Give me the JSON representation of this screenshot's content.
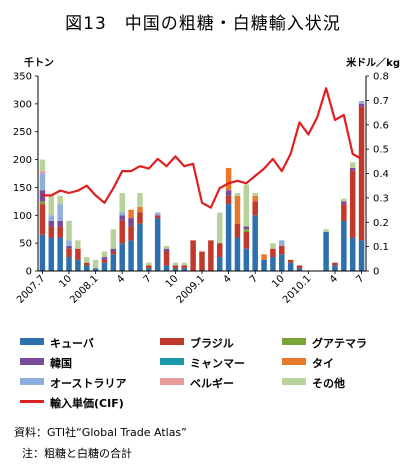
{
  "title": "図13　中国の粗糖・白糖輸入状況",
  "source": "資料：GTI社“Global Trade Atlas”",
  "note": "注：粗糖と白糖の合計",
  "chart_data": {
    "type": "bar",
    "stacked": true,
    "title": "図13　中国の粗糖・白糖輸入状況",
    "left_axis": {
      "label": "千トン",
      "ticks": [
        0,
        50,
        100,
        150,
        200,
        250,
        300,
        350
      ],
      "range": [
        0,
        350
      ]
    },
    "right_axis": {
      "label": "米ドル／kg",
      "ticks": [
        "0",
        "0.1",
        "0.2",
        "0.3",
        "0.4",
        "0.5",
        "0.6",
        "0.7",
        "0.8"
      ],
      "range": [
        0,
        0.8
      ]
    },
    "x_tick_labels": [
      {
        "label": "2007.7",
        "index": 0
      },
      {
        "label": "10",
        "index": 3
      },
      {
        "label": "2008.1",
        "index": 6
      },
      {
        "label": "4",
        "index": 9
      },
      {
        "label": "7",
        "index": 12
      },
      {
        "label": "10",
        "index": 15
      },
      {
        "label": "2009.1",
        "index": 18
      },
      {
        "label": "4",
        "index": 21
      },
      {
        "label": "7",
        "index": 24
      },
      {
        "label": "10",
        "index": 27
      },
      {
        "label": "2010.1",
        "index": 30
      },
      {
        "label": "4",
        "index": 33
      },
      {
        "label": "7",
        "index": 36
      }
    ],
    "months": 37,
    "series": [
      {
        "name": "キューバ",
        "color": "#2e6fae",
        "values": [
          65,
          60,
          60,
          25,
          20,
          10,
          5,
          15,
          30,
          50,
          55,
          85,
          5,
          95,
          10,
          5,
          5,
          0,
          0,
          0,
          25,
          120,
          60,
          40,
          100,
          20,
          25,
          30,
          15,
          5,
          0,
          0,
          70,
          10,
          90,
          60,
          55
        ]
      },
      {
        "name": "ブラジル",
        "color": "#c0392b",
        "values": [
          55,
          20,
          20,
          15,
          20,
          5,
          0,
          5,
          5,
          40,
          25,
          20,
          5,
          5,
          25,
          5,
          5,
          55,
          35,
          55,
          25,
          15,
          25,
          30,
          25,
          0,
          15,
          15,
          5,
          5,
          0,
          0,
          0,
          5,
          30,
          120,
          240
        ]
      },
      {
        "name": "グアテマラ",
        "color": "#7aa33a",
        "values": [
          5,
          0,
          0,
          0,
          0,
          0,
          0,
          0,
          0,
          0,
          0,
          0,
          0,
          0,
          0,
          0,
          0,
          0,
          0,
          0,
          0,
          0,
          0,
          5,
          0,
          0,
          0,
          0,
          0,
          0,
          0,
          0,
          0,
          0,
          0,
          0,
          0
        ]
      },
      {
        "name": "韓国",
        "color": "#7a4a9a",
        "values": [
          20,
          10,
          10,
          5,
          0,
          0,
          0,
          5,
          5,
          10,
          15,
          0,
          0,
          0,
          5,
          0,
          0,
          0,
          0,
          0,
          0,
          10,
          0,
          5,
          0,
          0,
          0,
          0,
          0,
          0,
          0,
          0,
          0,
          0,
          5,
          5,
          5
        ]
      },
      {
        "name": "ミャンマー",
        "color": "#1a9aa8",
        "values": [
          0,
          0,
          0,
          0,
          0,
          0,
          0,
          0,
          0,
          0,
          0,
          0,
          0,
          0,
          0,
          0,
          0,
          0,
          0,
          0,
          0,
          0,
          0,
          0,
          0,
          0,
          0,
          0,
          0,
          0,
          0,
          0,
          0,
          0,
          0,
          0,
          0
        ]
      },
      {
        "name": "タイ",
        "color": "#e8792a",
        "values": [
          0,
          0,
          0,
          0,
          0,
          0,
          0,
          0,
          0,
          0,
          15,
          10,
          0,
          0,
          0,
          0,
          0,
          0,
          0,
          0,
          0,
          40,
          50,
          0,
          10,
          10,
          0,
          0,
          0,
          0,
          0,
          0,
          0,
          0,
          0,
          0,
          0
        ]
      },
      {
        "name": "オーストラリア",
        "color": "#8faedc",
        "values": [
          30,
          10,
          30,
          10,
          0,
          0,
          0,
          0,
          0,
          5,
          0,
          0,
          0,
          5,
          0,
          0,
          0,
          0,
          0,
          0,
          0,
          0,
          0,
          0,
          0,
          0,
          0,
          10,
          0,
          0,
          0,
          0,
          0,
          0,
          0,
          0,
          5
        ]
      },
      {
        "name": "ベルギー",
        "color": "#e89a9a",
        "values": [
          5,
          0,
          0,
          0,
          0,
          0,
          0,
          0,
          0,
          0,
          0,
          0,
          0,
          0,
          0,
          0,
          0,
          0,
          0,
          0,
          0,
          0,
          0,
          0,
          0,
          0,
          0,
          0,
          0,
          0,
          0,
          0,
          0,
          0,
          0,
          0,
          0
        ]
      },
      {
        "name": "その他",
        "color": "#b5d39a",
        "values": [
          20,
          35,
          15,
          35,
          15,
          10,
          15,
          10,
          35,
          35,
          0,
          25,
          5,
          0,
          5,
          5,
          5,
          0,
          0,
          0,
          55,
          0,
          5,
          75,
          5,
          0,
          10,
          0,
          0,
          0,
          0,
          0,
          5,
          0,
          5,
          10,
          0
        ]
      }
    ],
    "line": {
      "name": "輸入単価(CIF)",
      "color": "#e02020",
      "axis": "right",
      "values": [
        0.31,
        0.31,
        0.33,
        0.32,
        0.33,
        0.35,
        0.31,
        0.28,
        0.34,
        0.41,
        0.41,
        0.43,
        0.42,
        0.46,
        0.43,
        0.47,
        0.43,
        0.44,
        0.28,
        0.26,
        0.34,
        0.36,
        0.37,
        0.36,
        0.39,
        0.42,
        0.46,
        0.41,
        0.48,
        0.61,
        0.56,
        0.63,
        0.75,
        0.62,
        0.64,
        0.48,
        0.46
      ]
    }
  }
}
